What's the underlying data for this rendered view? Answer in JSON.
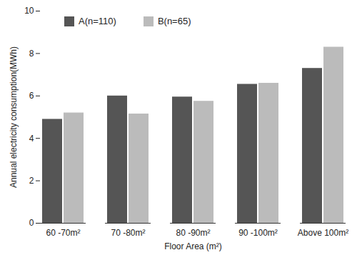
{
  "chart_data": {
    "type": "bar",
    "x_label": "Floor Area (m²)",
    "y_label": "Annual electricity consumption(MWh)",
    "categories": [
      "60 -70m²",
      "70 -80m²",
      "80 -90m²",
      "90 -100m²",
      "Above 100m²"
    ],
    "series": [
      {
        "name": "A(n=110)",
        "color": "#555555",
        "values": [
          4.9,
          6.0,
          5.95,
          6.55,
          7.3
        ]
      },
      {
        "name": "B(n=65)",
        "color": "#bbbbbb",
        "values": [
          5.2,
          5.15,
          5.75,
          6.6,
          8.3
        ]
      }
    ],
    "ylim": [
      0,
      10
    ],
    "yticks": [
      0,
      2,
      4,
      6,
      8,
      10
    ],
    "grid": false,
    "legend": "top-left"
  }
}
